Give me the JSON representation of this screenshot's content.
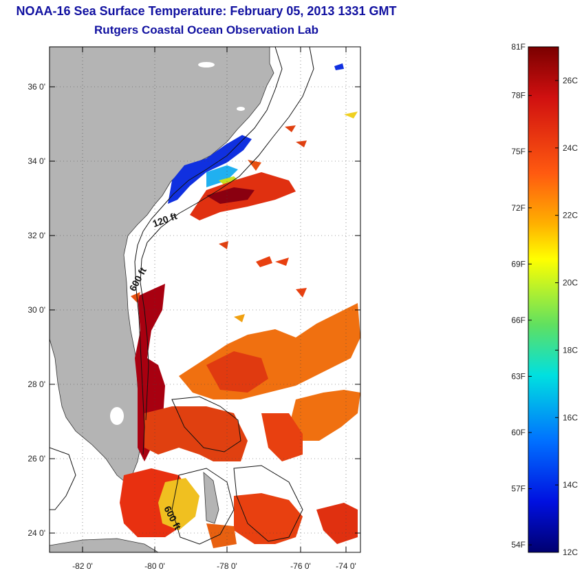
{
  "title": {
    "line1": "NOAA-16 Sea Surface Temperature:  February 05, 2013 1331 GMT",
    "line2": "Rutgers Coastal Ocean Observation Lab"
  },
  "map": {
    "lon_ticks": [
      "-82 0'",
      "-80 0'",
      "-78 0'",
      "-76 0'",
      "-74 0'"
    ],
    "lat_ticks": [
      "36 0'",
      "34 0'",
      "32 0'",
      "30 0'",
      "28 0'",
      "26 0'",
      "24 0'"
    ],
    "contour_labels": [
      "120 ft",
      "600 ft",
      "600 ft"
    ],
    "colors": {
      "land": "#b4b4b4",
      "ocean_nodata": "#ffffff"
    }
  },
  "colorbar": {
    "fahrenheit": [
      "81F",
      "78F",
      "75F",
      "72F",
      "69F",
      "66F",
      "63F",
      "60F",
      "57F",
      "54F"
    ],
    "celsius": [
      "26C",
      "24C",
      "22C",
      "20C",
      "18C",
      "16C",
      "14C",
      "12C"
    ],
    "range_c": [
      12,
      27
    ]
  }
}
